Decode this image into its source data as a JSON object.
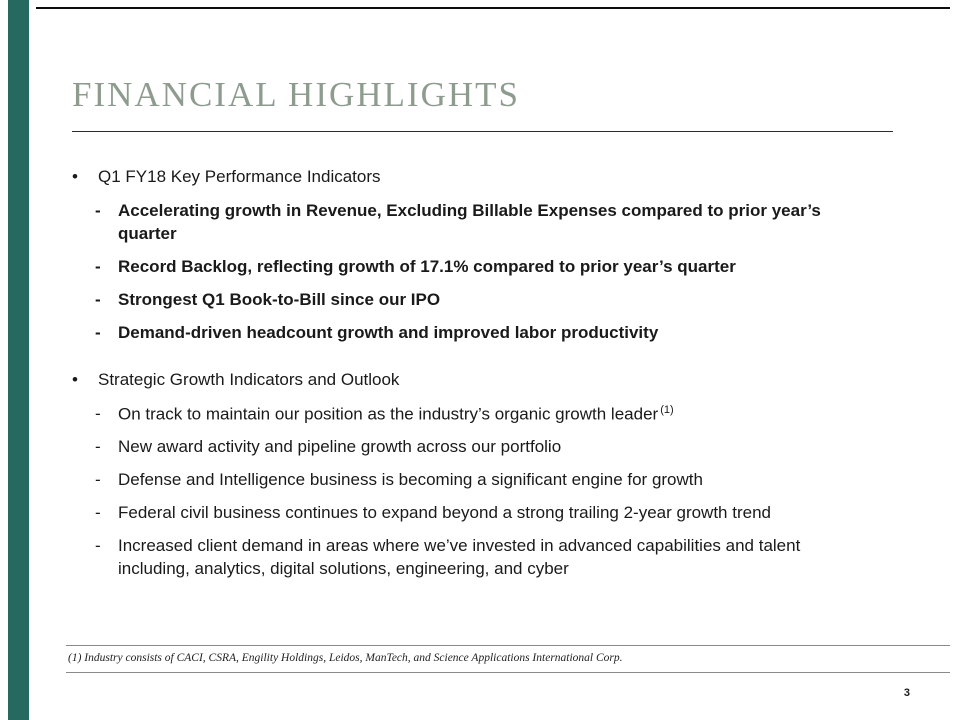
{
  "markers": {
    "bullet": "•",
    "dash": "-"
  },
  "slide": {
    "title": "FINANCIAL HIGHLIGHTS",
    "page_number": "3",
    "footnote": "(1) Industry consists of CACI, CSRA, Engility Holdings, Leidos, ManTech, and Science Applications International Corp.",
    "colors": {
      "accent_bar": "#26695E",
      "title": "#8E9C8F"
    },
    "sections": [
      {
        "heading": "Q1 FY18 Key Performance Indicators",
        "items": [
          {
            "text": "Accelerating growth in Revenue, Excluding Billable Expenses compared to prior year’s quarter"
          },
          {
            "text": "Record Backlog, reflecting growth of 17.1% compared to prior year’s quarter"
          },
          {
            "text": "Strongest Q1 Book-to-Bill since our IPO"
          },
          {
            "text": "Demand-driven headcount growth and improved labor productivity"
          }
        ]
      },
      {
        "heading": "Strategic Growth Indicators and Outlook",
        "items": [
          {
            "text": "On track to maintain our position as the industry’s organic growth leader",
            "superscript": "(1)"
          },
          {
            "text": "New award activity and pipeline growth across our portfolio"
          },
          {
            "text": "Defense and Intelligence business is becoming a significant engine for growth"
          },
          {
            "text": "Federal civil business continues to expand beyond a strong trailing 2-year growth trend"
          },
          {
            "text": "Increased client demand in areas where we’ve invested in advanced capabilities and talent including, analytics, digital solutions, engineering, and cyber"
          }
        ]
      }
    ]
  }
}
